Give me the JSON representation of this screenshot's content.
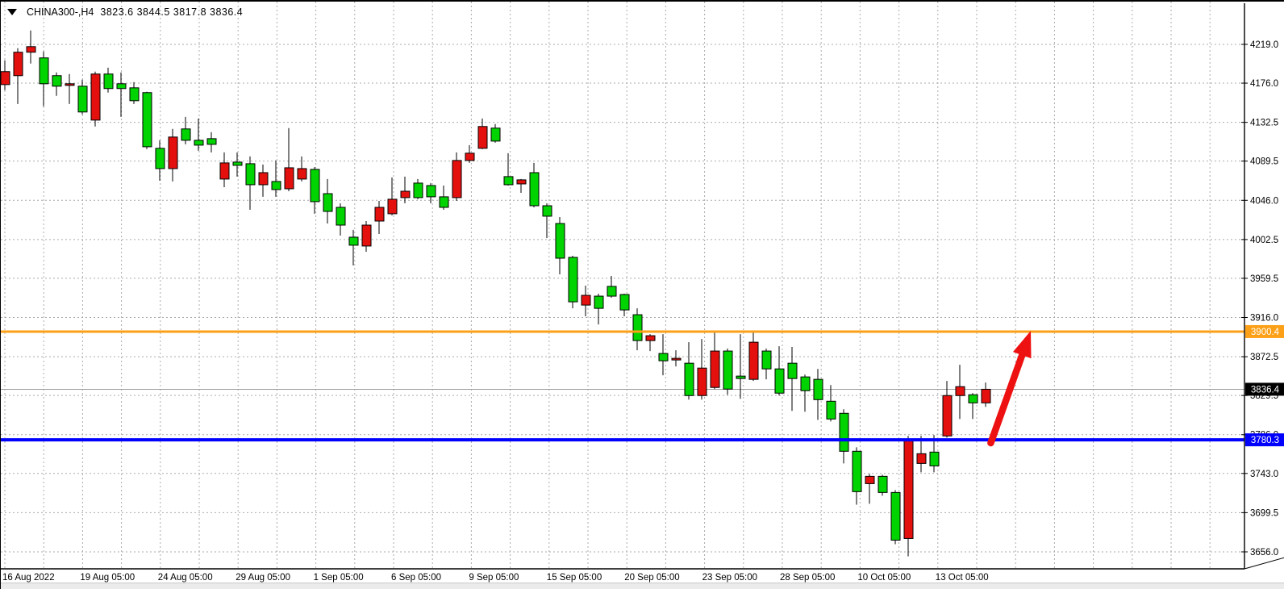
{
  "title": {
    "symbol": "CHINA300-,H4",
    "quote_text": "3823.6 3844.5 3817.8 3836.4"
  },
  "colors": {
    "background": "#ffffff",
    "grid": "#ababab",
    "bull_candle": "#e3100e",
    "bear_candle": "#00d400",
    "candle_border": "#000000",
    "wick": "#000000",
    "axis_line": "#000000",
    "axis_text": "#000000",
    "resistance_line": "#fca017",
    "support_line": "#0000ff",
    "bid_line": "#9a9a9a",
    "bid_badge_bg": "#000000",
    "badge_text": "#ffffff",
    "arrow": "#ee1111"
  },
  "chart_data": {
    "type": "candlestick",
    "title": "CHINA300-,H4",
    "symbol": "CHINA300-",
    "timeframe": "H4",
    "quote": {
      "open": 3823.6,
      "high": 3844.5,
      "low": 3817.8,
      "close": 3836.4
    },
    "legend_position": "none",
    "grid": "dashed",
    "ylim": [
      3645,
      4240
    ],
    "price_ticks": [
      4219.0,
      4176.0,
      4132.5,
      4089.5,
      4046.0,
      4002.5,
      3959.5,
      3916.0,
      3872.5,
      3829.5,
      3786.0,
      3743.0,
      3699.5,
      3656.0
    ],
    "time_labels": [
      "16 Aug 2022",
      "19 Aug 05:00",
      "24 Aug 05:00",
      "29 Aug 05:00",
      "1 Sep 05:00",
      "6 Sep 05:00",
      "9 Sep 05:00",
      "15 Sep 05:00",
      "20 Sep 05:00",
      "23 Sep 05:00",
      "28 Sep 05:00",
      "10 Oct 05:00",
      "13 Oct 05:00"
    ],
    "horizontal_lines": [
      {
        "name": "resistance",
        "price": 3900.4,
        "label": "3900.4",
        "color": "#fca017",
        "thickness": 3
      },
      {
        "name": "support",
        "price": 3780.3,
        "label": "3780.3",
        "color": "#0000ff",
        "thickness": 4
      }
    ],
    "bid_line": {
      "price": 3836.4,
      "label": "3836.4",
      "line_color": "#9a9a9a",
      "badge_bg": "#000000"
    },
    "arrow": {
      "from": {
        "bar": 76.4,
        "price": 3776.8
      },
      "to": {
        "bar": 79.5,
        "price": 3901.2
      },
      "color": "#ee1111"
    },
    "candles": [
      [
        4174.4,
        4201.3,
        4168.2,
        4188.8
      ],
      [
        4184.3,
        4214.8,
        4152.9,
        4210.3
      ],
      [
        4210.3,
        4234.4,
        4197.7,
        4216.5
      ],
      [
        4204.0,
        4211.2,
        4150.3,
        4175.3
      ],
      [
        4184.3,
        4187.9,
        4161.9,
        4172.6
      ],
      [
        4173.5,
        4186.1,
        4152.9,
        4175.3
      ],
      [
        4172.6,
        4179.8,
        4141.3,
        4144.0
      ],
      [
        4135.0,
        4188.8,
        4127.9,
        4186.1
      ],
      [
        4186.1,
        4193.2,
        4165.5,
        4170.0
      ],
      [
        4175.3,
        4187.9,
        4138.6,
        4170.0
      ],
      [
        4170.8,
        4177.1,
        4152.9,
        4156.5
      ],
      [
        4165.5,
        4166.4,
        4102.8,
        4105.4
      ],
      [
        4103.7,
        4112.6,
        4067.8,
        4081.2
      ],
      [
        4081.2,
        4125.2,
        4066.9,
        4116.2
      ],
      [
        4125.2,
        4138.6,
        4108.1,
        4112.6
      ],
      [
        4112.6,
        4136.8,
        4101.0,
        4107.2
      ],
      [
        4114.4,
        4121.6,
        4099.2,
        4108.1
      ],
      [
        4069.6,
        4099.2,
        4060.6,
        4087.5
      ],
      [
        4088.4,
        4099.2,
        4072.3,
        4084.8
      ],
      [
        4086.6,
        4094.7,
        4035.5,
        4063.3
      ],
      [
        4063.3,
        4085.7,
        4049.9,
        4076.7
      ],
      [
        4066.9,
        4090.2,
        4049.9,
        4057.9
      ],
      [
        4058.8,
        4126.1,
        4056.1,
        4082.1
      ],
      [
        4069.6,
        4094.7,
        4066.9,
        4081.2
      ],
      [
        4080.3,
        4083.0,
        4031.1,
        4044.5
      ],
      [
        4053.4,
        4069.6,
        4020.3,
        4033.7
      ],
      [
        4038.2,
        4042.7,
        4006.9,
        4018.5
      ],
      [
        4005.1,
        4013.2,
        3973.7,
        3996.2
      ],
      [
        3995.3,
        4023.0,
        3989.0,
        4018.5
      ],
      [
        4023.0,
        4045.4,
        4008.7,
        4038.2
      ],
      [
        4031.1,
        4071.4,
        4029.3,
        4047.2
      ],
      [
        4049.0,
        4072.3,
        4042.7,
        4056.1
      ],
      [
        4065.1,
        4069.6,
        4047.2,
        4049.0
      ],
      [
        4062.4,
        4065.1,
        4042.7,
        4049.9
      ],
      [
        4049.9,
        4062.4,
        4035.5,
        4038.2
      ],
      [
        4049.0,
        4099.2,
        4045.4,
        4090.2
      ],
      [
        4090.2,
        4107.2,
        4087.5,
        4098.3
      ],
      [
        4103.7,
        4136.8,
        4102.8,
        4127.9
      ],
      [
        4126.1,
        4130.6,
        4109.9,
        4111.7
      ],
      [
        4072.3,
        4098.3,
        4062.4,
        4063.3
      ],
      [
        4064.2,
        4069.6,
        4054.3,
        4068.7
      ],
      [
        4076.7,
        4087.5,
        4038.2,
        4040.0
      ],
      [
        4040.0,
        4042.7,
        4004.2,
        4028.4
      ],
      [
        4020.3,
        4027.5,
        3963.9,
        3981.8
      ],
      [
        3982.7,
        3984.5,
        3926.2,
        3933.4
      ],
      [
        3929.8,
        3951.4,
        3917.3,
        3940.6
      ],
      [
        3939.7,
        3942.4,
        3908.3,
        3926.2
      ],
      [
        3950.5,
        3962.1,
        3937.9,
        3939.7
      ],
      [
        3941.5,
        3942.4,
        3917.3,
        3924.4
      ],
      [
        3919.1,
        3926.2,
        3879.7,
        3890.4
      ],
      [
        3890.4,
        3897.6,
        3878.8,
        3895.8
      ],
      [
        3876.1,
        3897.6,
        3851.9,
        3868.0
      ],
      [
        3868.9,
        3879.7,
        3861.7,
        3870.7
      ],
      [
        3865.3,
        3888.6,
        3824.9,
        3829.4
      ],
      [
        3829.4,
        3892.2,
        3824.9,
        3859.9
      ],
      [
        3838.4,
        3899.4,
        3836.6,
        3878.8
      ],
      [
        3878.8,
        3881.5,
        3830.3,
        3836.6
      ],
      [
        3851.0,
        3897.6,
        3825.8,
        3848.3
      ],
      [
        3847.4,
        3899.4,
        3845.6,
        3888.6
      ],
      [
        3878.8,
        3881.5,
        3847.4,
        3859.0
      ],
      [
        3859.0,
        3884.1,
        3829.4,
        3832.1
      ],
      [
        3865.3,
        3883.3,
        3812.4,
        3848.3
      ],
      [
        3850.1,
        3852.7,
        3811.5,
        3834.8
      ],
      [
        3847.4,
        3859.0,
        3802.5,
        3824.9
      ],
      [
        3823.1,
        3841.1,
        3800.7,
        3803.4
      ],
      [
        3809.7,
        3814.2,
        3754.1,
        3767.6
      ],
      [
        3767.6,
        3772.0,
        3708.4,
        3722.8
      ],
      [
        3731.7,
        3742.5,
        3709.3,
        3739.8
      ],
      [
        3739.8,
        3741.6,
        3718.3,
        3721.9
      ],
      [
        3721.9,
        3724.6,
        3664.5,
        3669.0
      ],
      [
        3670.8,
        3784.6,
        3651.1,
        3781.0
      ],
      [
        3754.1,
        3784.6,
        3744.3,
        3764.9
      ],
      [
        3766.7,
        3785.5,
        3744.3,
        3751.4
      ],
      [
        3784.6,
        3845.6,
        3782.8,
        3829.4
      ],
      [
        3829.4,
        3863.5,
        3803.4,
        3839.3
      ],
      [
        3830.3,
        3832.1,
        3803.4,
        3821.3
      ],
      [
        3821.3,
        3843.8,
        3816.9,
        3836.4
      ]
    ]
  }
}
